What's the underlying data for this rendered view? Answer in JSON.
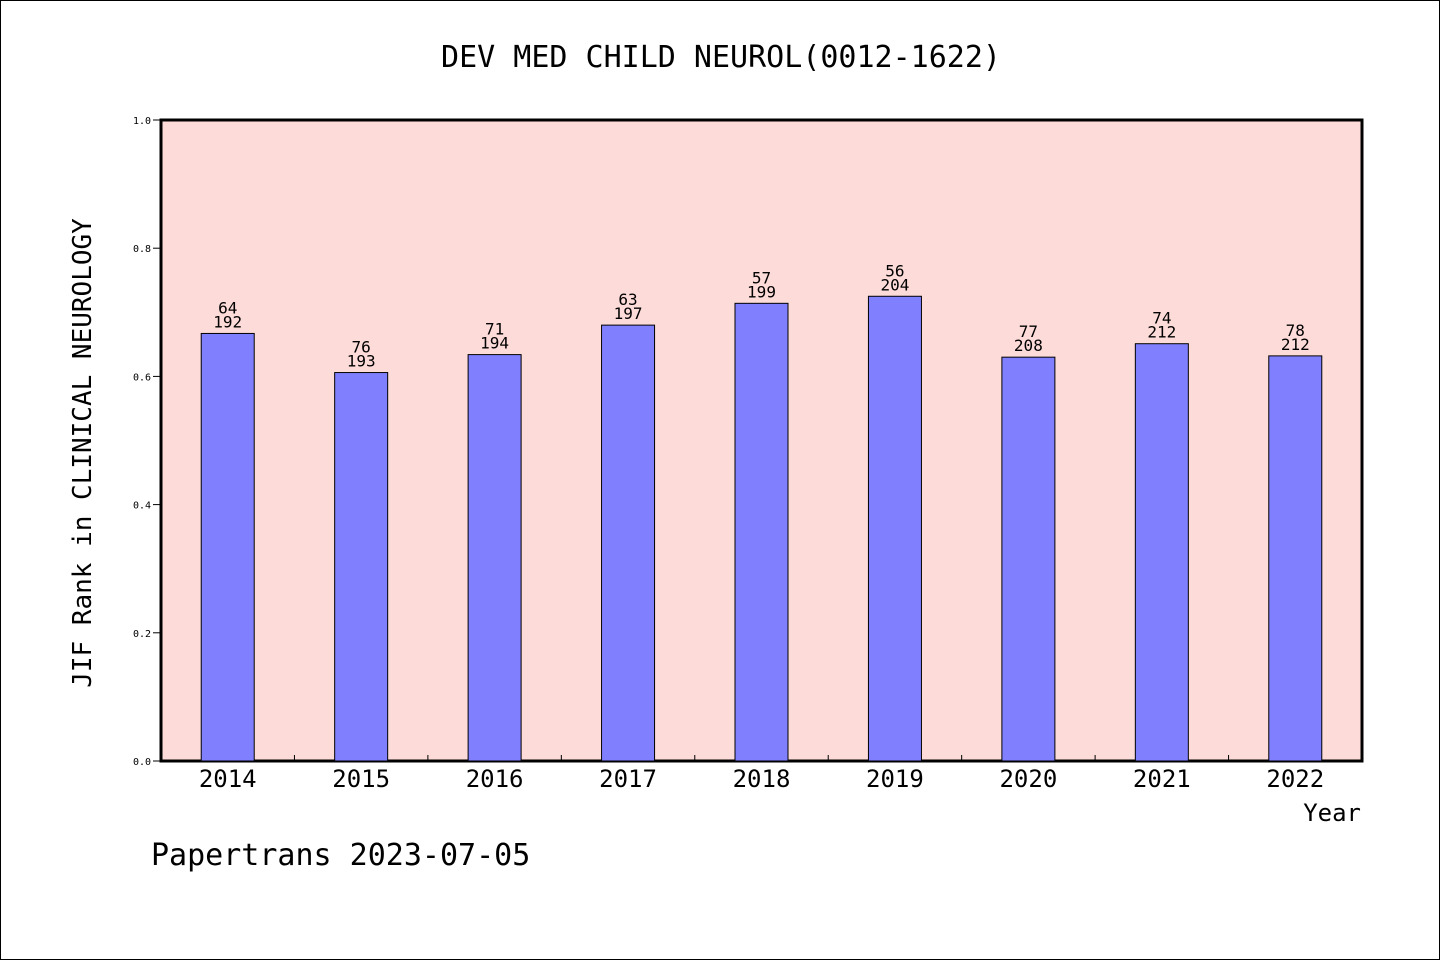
{
  "chart_data": {
    "type": "bar",
    "title": "DEV MED CHILD NEUROL(0012-1622)",
    "xlabel": "Year",
    "ylabel": "JIF Rank in CLINICAL NEUROLOGY",
    "ylim": [
      0,
      1.0
    ],
    "yticks": [
      "0.0",
      "0.2",
      "0.4",
      "0.6",
      "0.8",
      "1.0"
    ],
    "categories": [
      "2014",
      "2015",
      "2016",
      "2017",
      "2018",
      "2019",
      "2020",
      "2021",
      "2022"
    ],
    "values": [
      0.667,
      0.606,
      0.634,
      0.68,
      0.714,
      0.725,
      0.63,
      0.651,
      0.632
    ],
    "rank": [
      "64",
      "76",
      "71",
      "63",
      "57",
      "56",
      "77",
      "74",
      "78"
    ],
    "total": [
      "192",
      "193",
      "194",
      "197",
      "199",
      "204",
      "208",
      "212",
      "212"
    ],
    "plot_background": "#fddbd8",
    "bar_color": "#8080ff",
    "grid": false,
    "footer": "Papertrans 2023-07-05"
  }
}
